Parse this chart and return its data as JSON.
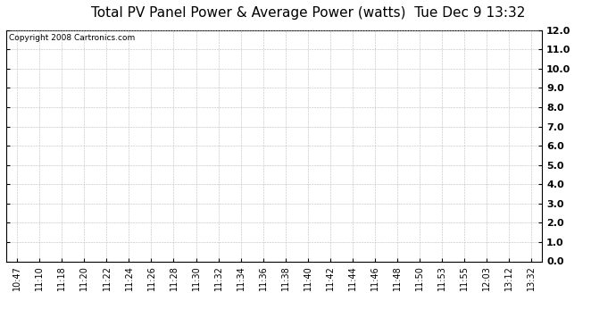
{
  "title": "Total PV Panel Power & Average Power (watts)  Tue Dec 9 13:32",
  "copyright_text": "Copyright 2008 Cartronics.com",
  "x_labels": [
    "10:47",
    "11:10",
    "11:18",
    "11:20",
    "11:22",
    "11:24",
    "11:26",
    "11:28",
    "11:30",
    "11:32",
    "11:34",
    "11:36",
    "11:38",
    "11:40",
    "11:42",
    "11:44",
    "11:46",
    "11:48",
    "11:50",
    "11:53",
    "11:55",
    "12:03",
    "13:12",
    "13:32"
  ],
  "y_min": 0.0,
  "y_max": 12.0,
  "y_ticks": [
    0.0,
    1.0,
    2.0,
    3.0,
    4.0,
    5.0,
    6.0,
    7.0,
    8.0,
    9.0,
    10.0,
    11.0,
    12.0
  ],
  "y_tick_labels": [
    "0.0",
    "1.0",
    "2.0",
    "3.0",
    "4.0",
    "5.0",
    "6.0",
    "7.0",
    "8.0",
    "9.0",
    "10.0",
    "11.0",
    "12.0"
  ],
  "bg_color": "#ffffff",
  "grid_color": "#bbbbbb",
  "title_fontsize": 11,
  "copyright_fontsize": 6.5,
  "tick_fontsize": 7,
  "y_tick_fontsize": 8,
  "border_color": "#000000"
}
